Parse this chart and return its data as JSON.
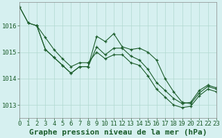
{
  "title": "Graphe pression niveau de la mer (hPa)",
  "background_color": "#d6f0f0",
  "grid_color": "#b0d8d0",
  "line_color": "#1a5c2a",
  "xlim": [
    0,
    23
  ],
  "ylim": [
    1012.5,
    1016.9
  ],
  "yticks": [
    1013,
    1014,
    1015,
    1016
  ],
  "xticks": [
    0,
    1,
    2,
    3,
    4,
    5,
    6,
    7,
    8,
    9,
    10,
    11,
    12,
    13,
    14,
    15,
    16,
    17,
    18,
    19,
    20,
    21,
    22,
    23
  ],
  "series": [
    {
      "x": [
        0,
        1,
        2,
        3,
        4,
        5,
        6,
        7,
        8,
        9,
        10,
        11,
        12,
        13,
        14,
        15,
        16,
        17,
        18,
        19,
        20,
        21,
        22,
        23
      ],
      "y": [
        1016.7,
        1016.1,
        1016.0,
        1015.1,
        1014.8,
        1014.5,
        1014.2,
        1014.45,
        1014.45,
        1015.2,
        1014.9,
        1015.15,
        1015.15,
        1014.85,
        1014.7,
        1014.35,
        1013.85,
        1013.55,
        1013.25,
        1013.05,
        1013.1,
        1013.55,
        1013.75,
        1013.65
      ]
    },
    {
      "x": [
        2,
        3,
        4,
        5,
        6,
        7,
        8,
        9,
        10,
        11,
        12,
        13,
        14,
        15,
        16,
        17,
        18,
        19,
        20,
        21,
        22,
        23
      ],
      "y": [
        1016.0,
        1015.1,
        1014.8,
        1014.5,
        1014.2,
        1014.45,
        1014.45,
        1015.6,
        1015.4,
        1015.7,
        1015.2,
        1015.1,
        1015.15,
        1015.0,
        1014.7,
        1014.0,
        1013.5,
        1013.1,
        1013.05,
        1013.45,
        1013.7,
        1013.6
      ]
    },
    {
      "x": [
        0,
        1,
        2,
        3,
        4,
        5,
        6,
        7,
        8,
        9,
        10,
        11,
        12,
        13,
        14,
        15,
        16,
        17,
        18,
        19,
        20,
        21,
        22,
        23
      ],
      "y": [
        1016.7,
        1016.1,
        1016.0,
        1015.55,
        1015.1,
        1014.75,
        1014.45,
        1014.6,
        1014.6,
        1015.0,
        1014.75,
        1014.9,
        1014.9,
        1014.6,
        1014.5,
        1014.1,
        1013.6,
        1013.3,
        1013.0,
        1012.9,
        1012.95,
        1013.35,
        1013.6,
        1013.5
      ]
    }
  ],
  "title_fontsize": 8,
  "tick_fontsize": 6.5
}
